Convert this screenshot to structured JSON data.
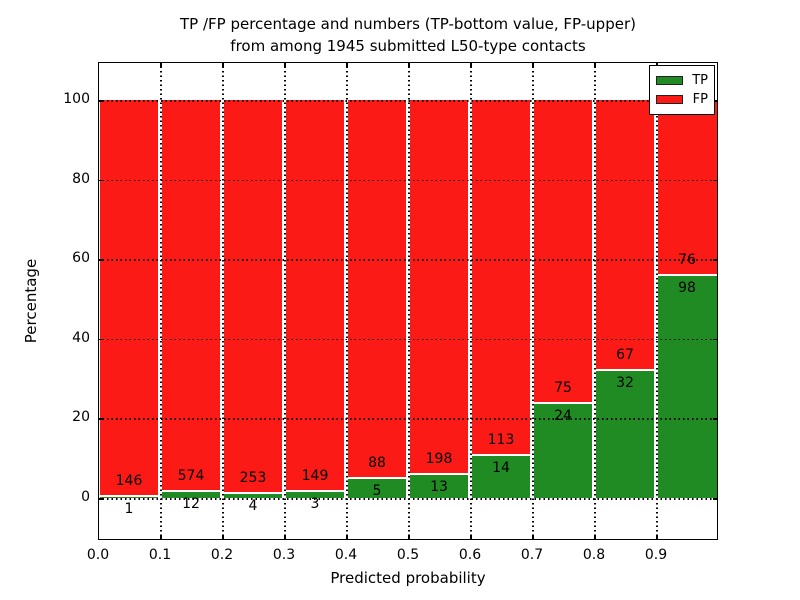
{
  "title": {
    "line1": "TP /FP percentage and numbers (TP-bottom value, FP-upper)",
    "line2": "from among 1945 submitted L50-type contacts"
  },
  "legend": {
    "items": [
      {
        "label": "TP",
        "color": "#208b22"
      },
      {
        "label": "FP",
        "color": "#fc1a16"
      }
    ]
  },
  "chart_data": {
    "type": "bar",
    "subtype": "stacked-100-percent-histogram",
    "title": "TP /FP percentage and numbers (TP-bottom value, FP-upper) from among 1945 submitted L50-type contacts",
    "xlabel": "Predicted probability",
    "ylabel": "Percentage",
    "total_contacts": 1945,
    "bin_edges": [
      0.0,
      0.1,
      0.2,
      0.3,
      0.4,
      0.5,
      0.6,
      0.7,
      0.8,
      0.9,
      1.0
    ],
    "xtick_labels": [
      "0.0",
      "0.1",
      "0.2",
      "0.3",
      "0.4",
      "0.5",
      "0.6",
      "0.7",
      "0.8",
      "0.9"
    ],
    "yticks": [
      0,
      20,
      40,
      60,
      80,
      100
    ],
    "ylim": [
      -11,
      110
    ],
    "grid": true,
    "legend_position": "upper right",
    "series": [
      {
        "name": "TP",
        "color": "#208b22",
        "counts": [
          1,
          12,
          4,
          3,
          5,
          13,
          14,
          24,
          32,
          98
        ],
        "percent": [
          0.68,
          2.05,
          1.56,
          1.97,
          5.38,
          6.16,
          11.02,
          24.24,
          32.32,
          56.32
        ]
      },
      {
        "name": "FP",
        "color": "#fc1a16",
        "counts": [
          146,
          574,
          253,
          149,
          88,
          198,
          113,
          75,
          67,
          76
        ],
        "percent": [
          99.32,
          97.95,
          98.44,
          98.03,
          94.62,
          93.84,
          88.98,
          75.76,
          67.68,
          43.68
        ]
      }
    ]
  }
}
